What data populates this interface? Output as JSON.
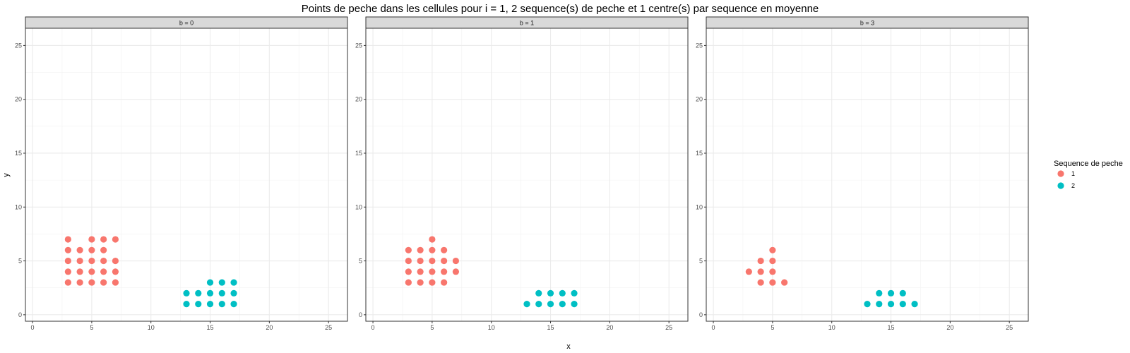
{
  "chart_data": {
    "type": "scatter",
    "title": "Points de peche dans les cellules pour i = 1, 2 sequence(s) de peche et 1 centre(s) par sequence en moyenne",
    "xlabel": "x",
    "ylabel": "y",
    "xlim": [
      -0.6,
      26.6
    ],
    "ylim": [
      -0.6,
      26.6
    ],
    "x_ticks": [
      0,
      5,
      10,
      15,
      20,
      25
    ],
    "y_ticks": [
      0,
      5,
      10,
      15,
      20,
      25
    ],
    "grid": true,
    "legend": {
      "title": "Sequence de peche",
      "placement": "right",
      "entries": [
        {
          "name": "1",
          "color": "#F8766D"
        },
        {
          "name": "2",
          "color": "#00BFC4"
        }
      ]
    },
    "facets": [
      {
        "label": "b = 0",
        "series": [
          {
            "name": "1",
            "color": "#F8766D",
            "points": [
              [
                3,
                3
              ],
              [
                3,
                4
              ],
              [
                3,
                5
              ],
              [
                3,
                6
              ],
              [
                3,
                7
              ],
              [
                4,
                3
              ],
              [
                4,
                4
              ],
              [
                4,
                5
              ],
              [
                4,
                6
              ],
              [
                5,
                3
              ],
              [
                5,
                4
              ],
              [
                5,
                5
              ],
              [
                5,
                6
              ],
              [
                5,
                7
              ],
              [
                6,
                3
              ],
              [
                6,
                4
              ],
              [
                6,
                5
              ],
              [
                6,
                6
              ],
              [
                6,
                7
              ],
              [
                7,
                3
              ],
              [
                7,
                4
              ],
              [
                7,
                5
              ],
              [
                7,
                7
              ]
            ]
          },
          {
            "name": "2",
            "color": "#00BFC4",
            "points": [
              [
                13,
                1
              ],
              [
                13,
                2
              ],
              [
                14,
                1
              ],
              [
                14,
                2
              ],
              [
                15,
                1
              ],
              [
                15,
                2
              ],
              [
                15,
                3
              ],
              [
                16,
                1
              ],
              [
                16,
                2
              ],
              [
                16,
                3
              ],
              [
                17,
                1
              ],
              [
                17,
                2
              ],
              [
                17,
                3
              ]
            ]
          }
        ]
      },
      {
        "label": "b = 1",
        "series": [
          {
            "name": "1",
            "color": "#F8766D",
            "points": [
              [
                3,
                3
              ],
              [
                3,
                4
              ],
              [
                3,
                5
              ],
              [
                3,
                6
              ],
              [
                4,
                3
              ],
              [
                4,
                4
              ],
              [
                4,
                5
              ],
              [
                4,
                6
              ],
              [
                5,
                3
              ],
              [
                5,
                4
              ],
              [
                5,
                5
              ],
              [
                5,
                6
              ],
              [
                5,
                7
              ],
              [
                6,
                3
              ],
              [
                6,
                4
              ],
              [
                6,
                5
              ],
              [
                6,
                6
              ],
              [
                7,
                4
              ],
              [
                7,
                5
              ]
            ]
          },
          {
            "name": "2",
            "color": "#00BFC4",
            "points": [
              [
                13,
                1
              ],
              [
                14,
                1
              ],
              [
                14,
                2
              ],
              [
                15,
                1
              ],
              [
                15,
                2
              ],
              [
                16,
                1
              ],
              [
                16,
                2
              ],
              [
                17,
                1
              ],
              [
                17,
                2
              ]
            ]
          }
        ]
      },
      {
        "label": "b = 3",
        "series": [
          {
            "name": "1",
            "color": "#F8766D",
            "points": [
              [
                3,
                4
              ],
              [
                4,
                3
              ],
              [
                4,
                4
              ],
              [
                4,
                5
              ],
              [
                5,
                3
              ],
              [
                5,
                4
              ],
              [
                5,
                5
              ],
              [
                5,
                6
              ],
              [
                6,
                3
              ]
            ]
          },
          {
            "name": "2",
            "color": "#00BFC4",
            "points": [
              [
                13,
                1
              ],
              [
                14,
                1
              ],
              [
                14,
                2
              ],
              [
                15,
                1
              ],
              [
                15,
                2
              ],
              [
                16,
                1
              ],
              [
                16,
                2
              ],
              [
                17,
                1
              ]
            ]
          }
        ]
      }
    ]
  }
}
